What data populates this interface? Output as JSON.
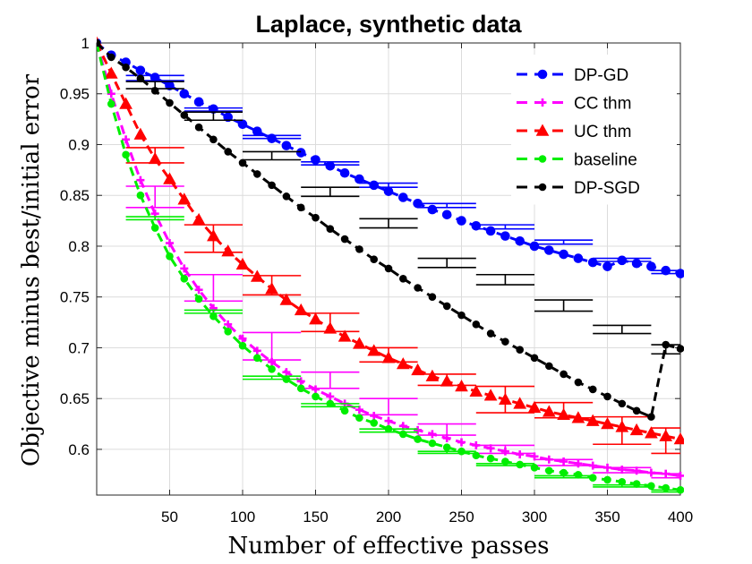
{
  "chart_data": {
    "type": "line",
    "title": "Laplace, synthetic data",
    "xlabel": "Number of effective passes",
    "ylabel": "Objective minus best/initial error",
    "xlim": [
      0,
      400
    ],
    "ylim": [
      0.555,
      1.0
    ],
    "xticks": [
      50,
      100,
      150,
      200,
      250,
      300,
      350,
      400
    ],
    "yticks": [
      0.6,
      0.65,
      0.7,
      0.75,
      0.8,
      0.85,
      0.9,
      0.95,
      1
    ],
    "grid": true,
    "legend_position": "top-right",
    "series": [
      {
        "name": "DP-GD",
        "color": "#0000ff",
        "marker": "circle",
        "x": [
          0,
          10,
          20,
          30,
          40,
          50,
          60,
          70,
          80,
          90,
          100,
          110,
          120,
          130,
          140,
          150,
          160,
          170,
          180,
          190,
          200,
          210,
          220,
          230,
          240,
          250,
          260,
          270,
          280,
          290,
          300,
          310,
          320,
          330,
          340,
          350,
          360,
          370,
          380,
          390,
          400
        ],
        "y": [
          1.0,
          0.988,
          0.981,
          0.973,
          0.966,
          0.958,
          0.95,
          0.942,
          0.935,
          0.927,
          0.92,
          0.913,
          0.906,
          0.899,
          0.892,
          0.885,
          0.879,
          0.872,
          0.866,
          0.86,
          0.854,
          0.848,
          0.842,
          0.836,
          0.831,
          0.825,
          0.82,
          0.815,
          0.81,
          0.805,
          0.8,
          0.796,
          0.792,
          0.788,
          0.784,
          0.78,
          0.786,
          0.783,
          0.78,
          0.776,
          0.773
        ],
        "error_bars": [
          {
            "x0": 20,
            "x1": 60,
            "y": 0.968,
            "lo": 0.963,
            "hi": 0.968
          },
          {
            "x0": 60,
            "x1": 100,
            "y": 0.936,
            "lo": 0.933,
            "hi": 0.936
          },
          {
            "x0": 100,
            "x1": 140,
            "y": 0.909,
            "lo": 0.906,
            "hi": 0.909
          },
          {
            "x0": 140,
            "x1": 180,
            "y": 0.883,
            "lo": 0.88,
            "hi": 0.883
          },
          {
            "x0": 180,
            "x1": 220,
            "y": 0.862,
            "lo": 0.858,
            "hi": 0.862
          },
          {
            "x0": 220,
            "x1": 260,
            "y": 0.842,
            "lo": 0.838,
            "hi": 0.842
          },
          {
            "x0": 260,
            "x1": 300,
            "y": 0.821,
            "lo": 0.817,
            "hi": 0.821
          },
          {
            "x0": 300,
            "x1": 340,
            "y": 0.806,
            "lo": 0.802,
            "hi": 0.806
          },
          {
            "x0": 340,
            "x1": 380,
            "y": 0.788,
            "lo": 0.785,
            "hi": 0.788
          },
          {
            "x0": 380,
            "x1": 400,
            "y": 0.776,
            "lo": 0.773,
            "hi": 0.776
          }
        ]
      },
      {
        "name": "CC thm",
        "color": "#ff00ff",
        "marker": "plus",
        "x": [
          0,
          10,
          20,
          30,
          40,
          50,
          60,
          70,
          80,
          90,
          100,
          110,
          120,
          130,
          140,
          150,
          160,
          170,
          180,
          190,
          200,
          210,
          220,
          230,
          240,
          250,
          260,
          270,
          280,
          290,
          300,
          310,
          320,
          330,
          340,
          350,
          360,
          370,
          380,
          390,
          400
        ],
        "y": [
          1.0,
          0.95,
          0.905,
          0.865,
          0.832,
          0.803,
          0.778,
          0.757,
          0.739,
          0.723,
          0.709,
          0.697,
          0.686,
          0.676,
          0.667,
          0.659,
          0.652,
          0.645,
          0.639,
          0.633,
          0.628,
          0.623,
          0.619,
          0.615,
          0.611,
          0.607,
          0.604,
          0.601,
          0.598,
          0.595,
          0.593,
          0.59,
          0.588,
          0.586,
          0.584,
          0.582,
          0.58,
          0.579,
          0.577,
          0.576,
          0.574
        ],
        "error_bars": [
          {
            "x0": 20,
            "x1": 60,
            "y": 0.859,
            "lo": 0.838,
            "hi": 0.859
          },
          {
            "x0": 60,
            "x1": 100,
            "y": 0.772,
            "lo": 0.746,
            "hi": 0.772
          },
          {
            "x0": 100,
            "x1": 140,
            "y": 0.715,
            "lo": 0.688,
            "hi": 0.715
          },
          {
            "x0": 140,
            "x1": 180,
            "y": 0.676,
            "lo": 0.66,
            "hi": 0.676
          },
          {
            "x0": 180,
            "x1": 220,
            "y": 0.65,
            "lo": 0.634,
            "hi": 0.65
          },
          {
            "x0": 220,
            "x1": 260,
            "y": 0.625,
            "lo": 0.614,
            "hi": 0.625
          },
          {
            "x0": 260,
            "x1": 300,
            "y": 0.604,
            "lo": 0.596,
            "hi": 0.604
          },
          {
            "x0": 300,
            "x1": 340,
            "y": 0.59,
            "lo": 0.584,
            "hi": 0.59
          },
          {
            "x0": 340,
            "x1": 380,
            "y": 0.582,
            "lo": 0.577,
            "hi": 0.582
          },
          {
            "x0": 380,
            "x1": 400,
            "y": 0.576,
            "lo": 0.572,
            "hi": 0.576
          }
        ]
      },
      {
        "name": "UC thm",
        "color": "#ff0000",
        "marker": "triangle",
        "x": [
          0,
          10,
          20,
          30,
          40,
          50,
          60,
          70,
          80,
          90,
          100,
          110,
          120,
          130,
          140,
          150,
          160,
          170,
          180,
          190,
          200,
          210,
          220,
          230,
          240,
          250,
          260,
          270,
          280,
          290,
          300,
          310,
          320,
          330,
          340,
          350,
          360,
          370,
          380,
          390,
          400
        ],
        "y": [
          1.0,
          0.97,
          0.94,
          0.91,
          0.886,
          0.866,
          0.846,
          0.826,
          0.81,
          0.795,
          0.782,
          0.77,
          0.758,
          0.747,
          0.737,
          0.728,
          0.719,
          0.711,
          0.704,
          0.697,
          0.69,
          0.684,
          0.678,
          0.672,
          0.667,
          0.662,
          0.657,
          0.653,
          0.649,
          0.645,
          0.641,
          0.637,
          0.634,
          0.631,
          0.628,
          0.625,
          0.622,
          0.619,
          0.616,
          0.613,
          0.61
        ],
        "error_bars": [
          {
            "x0": 20,
            "x1": 60,
            "y": 0.897,
            "lo": 0.882,
            "hi": 0.897
          },
          {
            "x0": 60,
            "x1": 100,
            "y": 0.821,
            "lo": 0.794,
            "hi": 0.821
          },
          {
            "x0": 100,
            "x1": 140,
            "y": 0.771,
            "lo": 0.752,
            "hi": 0.771
          },
          {
            "x0": 140,
            "x1": 180,
            "y": 0.734,
            "lo": 0.716,
            "hi": 0.734
          },
          {
            "x0": 180,
            "x1": 220,
            "y": 0.7,
            "lo": 0.686,
            "hi": 0.7
          },
          {
            "x0": 220,
            "x1": 260,
            "y": 0.674,
            "lo": 0.663,
            "hi": 0.674
          },
          {
            "x0": 260,
            "x1": 300,
            "y": 0.662,
            "lo": 0.636,
            "hi": 0.662
          },
          {
            "x0": 300,
            "x1": 340,
            "y": 0.646,
            "lo": 0.631,
            "hi": 0.646
          },
          {
            "x0": 340,
            "x1": 380,
            "y": 0.632,
            "lo": 0.605,
            "hi": 0.632
          },
          {
            "x0": 380,
            "x1": 400,
            "y": 0.621,
            "lo": 0.596,
            "hi": 0.621
          }
        ]
      },
      {
        "name": "baseline",
        "color": "#00ee00",
        "marker": "dot",
        "x": [
          0,
          10,
          20,
          30,
          40,
          50,
          60,
          70,
          80,
          90,
          100,
          110,
          120,
          130,
          140,
          150,
          160,
          170,
          180,
          190,
          200,
          210,
          220,
          230,
          240,
          250,
          260,
          270,
          280,
          290,
          300,
          310,
          320,
          330,
          340,
          350,
          360,
          370,
          380,
          390,
          400
        ],
        "y": [
          1.0,
          0.94,
          0.89,
          0.85,
          0.818,
          0.79,
          0.768,
          0.748,
          0.731,
          0.716,
          0.702,
          0.69,
          0.679,
          0.669,
          0.66,
          0.652,
          0.645,
          0.638,
          0.631,
          0.626,
          0.62,
          0.615,
          0.61,
          0.606,
          0.602,
          0.598,
          0.594,
          0.591,
          0.588,
          0.585,
          0.582,
          0.579,
          0.577,
          0.575,
          0.572,
          0.57,
          0.568,
          0.566,
          0.564,
          0.562,
          0.56
        ],
        "error_bars": [
          {
            "x0": 20,
            "x1": 60,
            "y": 0.829,
            "lo": 0.826,
            "hi": 0.829
          },
          {
            "x0": 60,
            "x1": 100,
            "y": 0.737,
            "lo": 0.734,
            "hi": 0.737
          },
          {
            "x0": 100,
            "x1": 140,
            "y": 0.672,
            "lo": 0.669,
            "hi": 0.672
          },
          {
            "x0": 140,
            "x1": 180,
            "y": 0.645,
            "lo": 0.642,
            "hi": 0.645
          },
          {
            "x0": 180,
            "x1": 220,
            "y": 0.62,
            "lo": 0.617,
            "hi": 0.62
          },
          {
            "x0": 220,
            "x1": 260,
            "y": 0.598,
            "lo": 0.596,
            "hi": 0.598
          },
          {
            "x0": 260,
            "x1": 300,
            "y": 0.586,
            "lo": 0.584,
            "hi": 0.586
          },
          {
            "x0": 300,
            "x1": 340,
            "y": 0.574,
            "lo": 0.572,
            "hi": 0.574
          },
          {
            "x0": 340,
            "x1": 380,
            "y": 0.565,
            "lo": 0.563,
            "hi": 0.565
          },
          {
            "x0": 380,
            "x1": 400,
            "y": 0.56,
            "lo": 0.558,
            "hi": 0.56
          }
        ]
      },
      {
        "name": "DP-SGD",
        "color": "#000000",
        "marker": "dot",
        "x": [
          0,
          10,
          20,
          30,
          40,
          50,
          60,
          70,
          80,
          90,
          100,
          110,
          120,
          130,
          140,
          150,
          160,
          170,
          180,
          190,
          200,
          210,
          220,
          230,
          240,
          250,
          260,
          270,
          280,
          290,
          300,
          310,
          320,
          330,
          340,
          350,
          360,
          370,
          380,
          390,
          400
        ],
        "y": [
          1.0,
          0.986,
          0.976,
          0.965,
          0.953,
          0.941,
          0.929,
          0.917,
          0.905,
          0.893,
          0.882,
          0.871,
          0.86,
          0.849,
          0.838,
          0.828,
          0.817,
          0.807,
          0.797,
          0.787,
          0.778,
          0.768,
          0.759,
          0.75,
          0.741,
          0.732,
          0.723,
          0.714,
          0.706,
          0.698,
          0.69,
          0.682,
          0.674,
          0.666,
          0.659,
          0.652,
          0.645,
          0.638,
          0.632,
          0.703,
          0.699
        ],
        "error_bars": [
          {
            "x0": 20,
            "x1": 60,
            "y": 0.962,
            "lo": 0.955,
            "hi": 0.962
          },
          {
            "x0": 60,
            "x1": 100,
            "y": 0.932,
            "lo": 0.924,
            "hi": 0.932
          },
          {
            "x0": 100,
            "x1": 140,
            "y": 0.893,
            "lo": 0.885,
            "hi": 0.893
          },
          {
            "x0": 140,
            "x1": 180,
            "y": 0.858,
            "lo": 0.849,
            "hi": 0.858
          },
          {
            "x0": 180,
            "x1": 220,
            "y": 0.827,
            "lo": 0.818,
            "hi": 0.827
          },
          {
            "x0": 220,
            "x1": 260,
            "y": 0.788,
            "lo": 0.779,
            "hi": 0.788
          },
          {
            "x0": 260,
            "x1": 300,
            "y": 0.772,
            "lo": 0.762,
            "hi": 0.772
          },
          {
            "x0": 300,
            "x1": 340,
            "y": 0.747,
            "lo": 0.736,
            "hi": 0.747
          },
          {
            "x0": 340,
            "x1": 380,
            "y": 0.722,
            "lo": 0.714,
            "hi": 0.722
          },
          {
            "x0": 380,
            "x1": 400,
            "y": 0.703,
            "lo": 0.694,
            "hi": 0.703
          }
        ]
      }
    ]
  }
}
